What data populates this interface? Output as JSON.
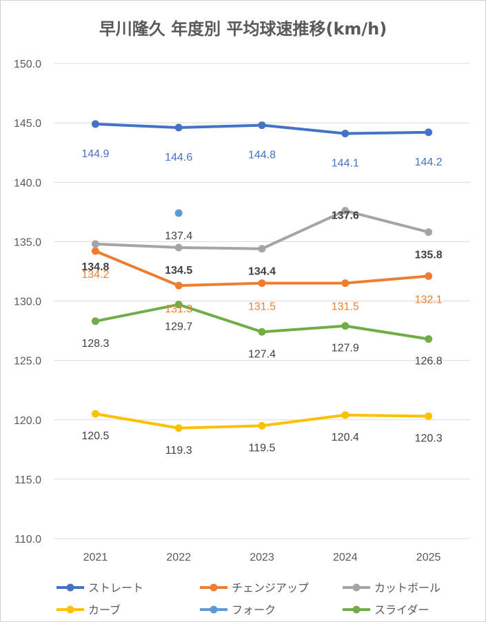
{
  "chart_data": {
    "type": "line",
    "title": "早川隆久 年度別 平均球速推移(km/h)",
    "categories": [
      "2021",
      "2022",
      "2023",
      "2024",
      "2025"
    ],
    "ylim": [
      110.0,
      150.0
    ],
    "yticks": [
      "110.0",
      "115.0",
      "120.0",
      "125.0",
      "130.0",
      "135.0",
      "140.0",
      "145.0",
      "150.0"
    ],
    "grid": true,
    "legend": "bottom",
    "series": [
      {
        "name": "ストレート",
        "color": "#4472C4",
        "values": [
          144.9,
          144.6,
          144.8,
          144.1,
          144.2
        ],
        "labels": [
          "144.9",
          "144.6",
          "144.8",
          "144.1",
          "144.2"
        ]
      },
      {
        "name": "チェンジアップ",
        "color": "#ED7D31",
        "values": [
          134.2,
          131.3,
          131.5,
          131.5,
          132.1
        ],
        "labels": [
          "134.2",
          "131.3",
          "131.5",
          "131.5",
          "132.1"
        ]
      },
      {
        "name": "カットボール",
        "color": "#A5A5A5",
        "values": [
          134.8,
          134.5,
          134.4,
          137.6,
          135.8
        ],
        "labels": [
          "134.8",
          "134.5",
          "134.4",
          "137.6",
          "135.8"
        ]
      },
      {
        "name": "カーブ",
        "color": "#FFC000",
        "values": [
          120.5,
          119.3,
          119.5,
          120.4,
          120.3
        ],
        "labels": [
          "120.5",
          "119.3",
          "119.5",
          "120.4",
          "120.3"
        ]
      },
      {
        "name": "フォーク",
        "color": "#5B9BD5",
        "values": [
          null,
          137.4,
          null,
          null,
          null
        ],
        "labels": [
          null,
          "137.4",
          null,
          null,
          null
        ]
      },
      {
        "name": "スライダー",
        "color": "#70AD47",
        "values": [
          128.3,
          129.7,
          127.4,
          127.9,
          126.8
        ],
        "labels": [
          "128.3",
          "129.7",
          "127.4",
          "127.9",
          "126.8"
        ]
      }
    ]
  }
}
